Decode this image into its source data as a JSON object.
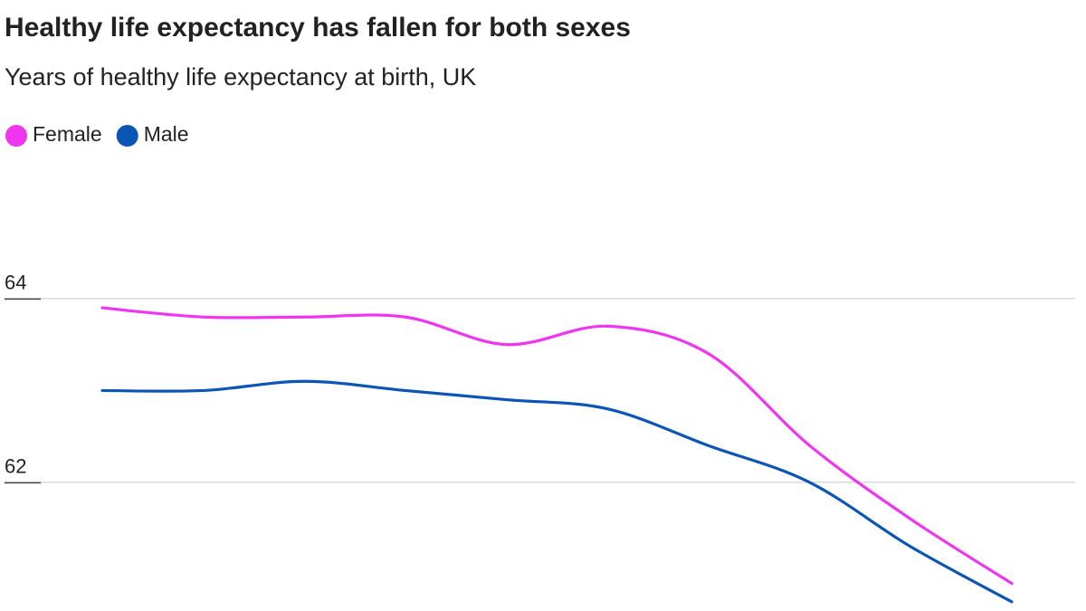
{
  "chart_data": {
    "type": "line",
    "title": "Healthy life expectancy has fallen for both sexes",
    "subtitle": "Years of healthy life expectancy at birth, UK",
    "categories": [
      null,
      null,
      null,
      null,
      null,
      null,
      null,
      null,
      null,
      null
    ],
    "series": [
      {
        "name": "Female",
        "color": "#f035f0",
        "values": [
          63.9,
          63.8,
          63.8,
          63.8,
          63.5,
          63.7,
          63.4,
          62.4,
          61.6,
          60.9
        ]
      },
      {
        "name": "Male",
        "color": "#0b55b5",
        "values": [
          63.0,
          63.0,
          63.1,
          63.0,
          62.9,
          62.8,
          62.4,
          62.0,
          61.3,
          60.7
        ]
      }
    ],
    "ylim": [
      60.6,
      65.3
    ],
    "yticks": [
      62,
      64
    ],
    "grid": true
  }
}
